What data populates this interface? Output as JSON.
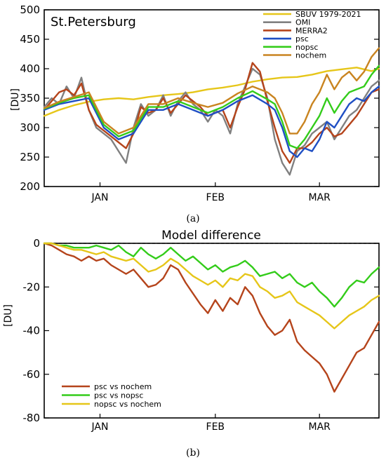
{
  "chart_data": [
    {
      "type": "line",
      "title": "St.Petersburg",
      "ylabel": "[DU]",
      "xlabel": "",
      "caption": "(a)",
      "xlim": [
        0,
        90
      ],
      "ylim": [
        200,
        500
      ],
      "yticks": [
        200,
        250,
        300,
        350,
        400,
        450,
        500
      ],
      "month_ticks": [
        {
          "label": "JAN",
          "x": 15
        },
        {
          "label": "FEB",
          "x": 46
        },
        {
          "label": "MAR",
          "x": 74
        }
      ],
      "legend": "top-right",
      "grid": false,
      "series": [
        {
          "name": "SBUV 1979-2021",
          "color": "#e6c619",
          "x": [
            0,
            4,
            8,
            12,
            16,
            20,
            24,
            28,
            32,
            36,
            40,
            44,
            48,
            52,
            56,
            60,
            64,
            68,
            72,
            76,
            80,
            84,
            88,
            90
          ],
          "y": [
            320,
            330,
            338,
            344,
            348,
            350,
            348,
            352,
            355,
            357,
            360,
            365,
            368,
            372,
            378,
            382,
            385,
            386,
            390,
            396,
            399,
            402,
            396,
            400
          ]
        },
        {
          "name": "OMI",
          "color": "#808080",
          "x": [
            0,
            2,
            4,
            6,
            8,
            10,
            12,
            14,
            16,
            18,
            20,
            22,
            24,
            26,
            28,
            30,
            32,
            34,
            36,
            38,
            40,
            42,
            44,
            46,
            48,
            50,
            52,
            54,
            56,
            58,
            60,
            62,
            64,
            66,
            68,
            70,
            72,
            74,
            76,
            78,
            80,
            82,
            84,
            86,
            88,
            90
          ],
          "y": [
            335,
            350,
            340,
            370,
            350,
            385,
            330,
            300,
            290,
            280,
            260,
            240,
            300,
            340,
            320,
            330,
            355,
            320,
            345,
            360,
            340,
            330,
            310,
            330,
            320,
            290,
            340,
            370,
            400,
            390,
            350,
            280,
            240,
            220,
            260,
            270,
            290,
            300,
            310,
            280,
            300,
            320,
            330,
            350,
            370,
            380
          ]
        },
        {
          "name": "MERRA2",
          "color": "#b5441b",
          "x": [
            0,
            2,
            4,
            6,
            8,
            10,
            12,
            14,
            16,
            18,
            20,
            22,
            24,
            26,
            28,
            30,
            32,
            34,
            36,
            38,
            40,
            42,
            44,
            46,
            48,
            50,
            52,
            54,
            56,
            58,
            60,
            62,
            64,
            66,
            68,
            70,
            72,
            74,
            76,
            78,
            80,
            82,
            84,
            86,
            88,
            90
          ],
          "y": [
            330,
            345,
            360,
            365,
            355,
            375,
            330,
            305,
            295,
            285,
            275,
            265,
            290,
            335,
            325,
            330,
            350,
            325,
            340,
            355,
            345,
            335,
            320,
            325,
            330,
            300,
            335,
            365,
            410,
            395,
            345,
            300,
            260,
            240,
            265,
            265,
            275,
            290,
            300,
            285,
            290,
            305,
            320,
            340,
            360,
            365
          ]
        },
        {
          "name": "psc",
          "color": "#1f4fc4",
          "x": [
            0,
            4,
            8,
            12,
            16,
            20,
            24,
            28,
            32,
            36,
            40,
            44,
            48,
            52,
            56,
            60,
            62,
            64,
            66,
            68,
            70,
            72,
            74,
            76,
            78,
            80,
            82,
            84,
            86,
            88,
            90
          ],
          "y": [
            330,
            340,
            345,
            350,
            300,
            280,
            290,
            330,
            330,
            340,
            330,
            320,
            330,
            345,
            355,
            340,
            330,
            300,
            260,
            250,
            265,
            260,
            280,
            310,
            300,
            320,
            340,
            350,
            345,
            360,
            370
          ]
        },
        {
          "name": "nopsc",
          "color": "#33cc1a",
          "x": [
            0,
            4,
            8,
            12,
            16,
            20,
            24,
            28,
            32,
            36,
            40,
            44,
            48,
            52,
            56,
            60,
            62,
            64,
            66,
            68,
            70,
            72,
            74,
            76,
            78,
            80,
            82,
            84,
            86,
            88,
            90
          ],
          "y": [
            332,
            342,
            350,
            355,
            305,
            285,
            295,
            335,
            335,
            345,
            335,
            325,
            335,
            350,
            362,
            348,
            340,
            310,
            270,
            265,
            280,
            300,
            320,
            350,
            325,
            345,
            360,
            365,
            370,
            390,
            405
          ]
        },
        {
          "name": "nochem",
          "color": "#c98420",
          "x": [
            0,
            4,
            8,
            12,
            16,
            20,
            24,
            28,
            32,
            36,
            40,
            44,
            48,
            52,
            56,
            60,
            62,
            64,
            66,
            68,
            70,
            72,
            74,
            76,
            78,
            80,
            82,
            84,
            86,
            88,
            90
          ],
          "y": [
            333,
            344,
            352,
            360,
            310,
            290,
            300,
            340,
            340,
            350,
            342,
            335,
            342,
            358,
            370,
            360,
            350,
            325,
            290,
            290,
            310,
            340,
            360,
            390,
            365,
            385,
            395,
            380,
            395,
            420,
            435
          ]
        }
      ]
    },
    {
      "type": "line",
      "title": "Model difference",
      "ylabel": "[DU]",
      "xlabel": "",
      "caption": "(b)",
      "xlim": [
        0,
        90
      ],
      "ylim": [
        -80,
        0
      ],
      "yticks": [
        -80,
        -60,
        -40,
        -20,
        0
      ],
      "month_ticks": [
        {
          "label": "JAN",
          "x": 15
        },
        {
          "label": "FEB",
          "x": 46
        },
        {
          "label": "MAR",
          "x": 74
        }
      ],
      "legend": "bottom-left",
      "grid": false,
      "reference_line": 0,
      "series": [
        {
          "name": "psc vs nochem",
          "color": "#b5441b",
          "x": [
            0,
            2,
            4,
            6,
            8,
            10,
            12,
            14,
            16,
            18,
            20,
            22,
            24,
            26,
            28,
            30,
            32,
            34,
            36,
            38,
            40,
            42,
            44,
            46,
            48,
            50,
            52,
            54,
            56,
            58,
            60,
            62,
            64,
            66,
            68,
            70,
            72,
            74,
            76,
            78,
            80,
            82,
            84,
            86,
            88,
            90
          ],
          "y": [
            0,
            -1,
            -3,
            -5,
            -6,
            -8,
            -6,
            -8,
            -7,
            -10,
            -12,
            -14,
            -12,
            -16,
            -20,
            -19,
            -16,
            -10,
            -12,
            -18,
            -23,
            -28,
            -32,
            -26,
            -31,
            -25,
            -28,
            -20,
            -24,
            -32,
            -38,
            -42,
            -40,
            -35,
            -45,
            -49,
            -52,
            -55,
            -60,
            -68,
            -62,
            -56,
            -50,
            -48,
            -42,
            -36
          ]
        },
        {
          "name": "psc vs nopsc",
          "color": "#33cc1a",
          "x": [
            0,
            2,
            4,
            6,
            8,
            10,
            12,
            14,
            16,
            18,
            20,
            22,
            24,
            26,
            28,
            30,
            32,
            34,
            36,
            38,
            40,
            42,
            44,
            46,
            48,
            50,
            52,
            54,
            56,
            58,
            60,
            62,
            64,
            66,
            68,
            70,
            72,
            74,
            76,
            78,
            80,
            82,
            84,
            86,
            88,
            90
          ],
          "y": [
            0,
            0,
            -1,
            -1,
            -2,
            -2,
            -2,
            -1,
            -2,
            -3,
            -1,
            -4,
            -6,
            -2,
            -5,
            -7,
            -5,
            -2,
            -5,
            -8,
            -6,
            -9,
            -12,
            -10,
            -13,
            -11,
            -10,
            -8,
            -11,
            -15,
            -14,
            -13,
            -16,
            -14,
            -18,
            -20,
            -18,
            -22,
            -25,
            -29,
            -25,
            -20,
            -17,
            -18,
            -14,
            -11
          ]
        },
        {
          "name": "nopsc vs nochem",
          "color": "#e6c619",
          "x": [
            0,
            2,
            4,
            6,
            8,
            10,
            12,
            14,
            16,
            18,
            20,
            22,
            24,
            26,
            28,
            30,
            32,
            34,
            36,
            38,
            40,
            42,
            44,
            46,
            48,
            50,
            52,
            54,
            56,
            58,
            60,
            62,
            64,
            66,
            68,
            70,
            72,
            74,
            76,
            78,
            80,
            82,
            84,
            86,
            88,
            90
          ],
          "y": [
            0,
            0,
            -1,
            -2,
            -3,
            -3,
            -4,
            -5,
            -4,
            -6,
            -7,
            -8,
            -7,
            -10,
            -13,
            -12,
            -10,
            -7,
            -9,
            -12,
            -15,
            -17,
            -19,
            -17,
            -20,
            -16,
            -17,
            -14,
            -15,
            -20,
            -22,
            -25,
            -24,
            -22,
            -27,
            -29,
            -31,
            -33,
            -36,
            -39,
            -36,
            -33,
            -31,
            -29,
            -26,
            -24
          ]
        }
      ]
    }
  ]
}
